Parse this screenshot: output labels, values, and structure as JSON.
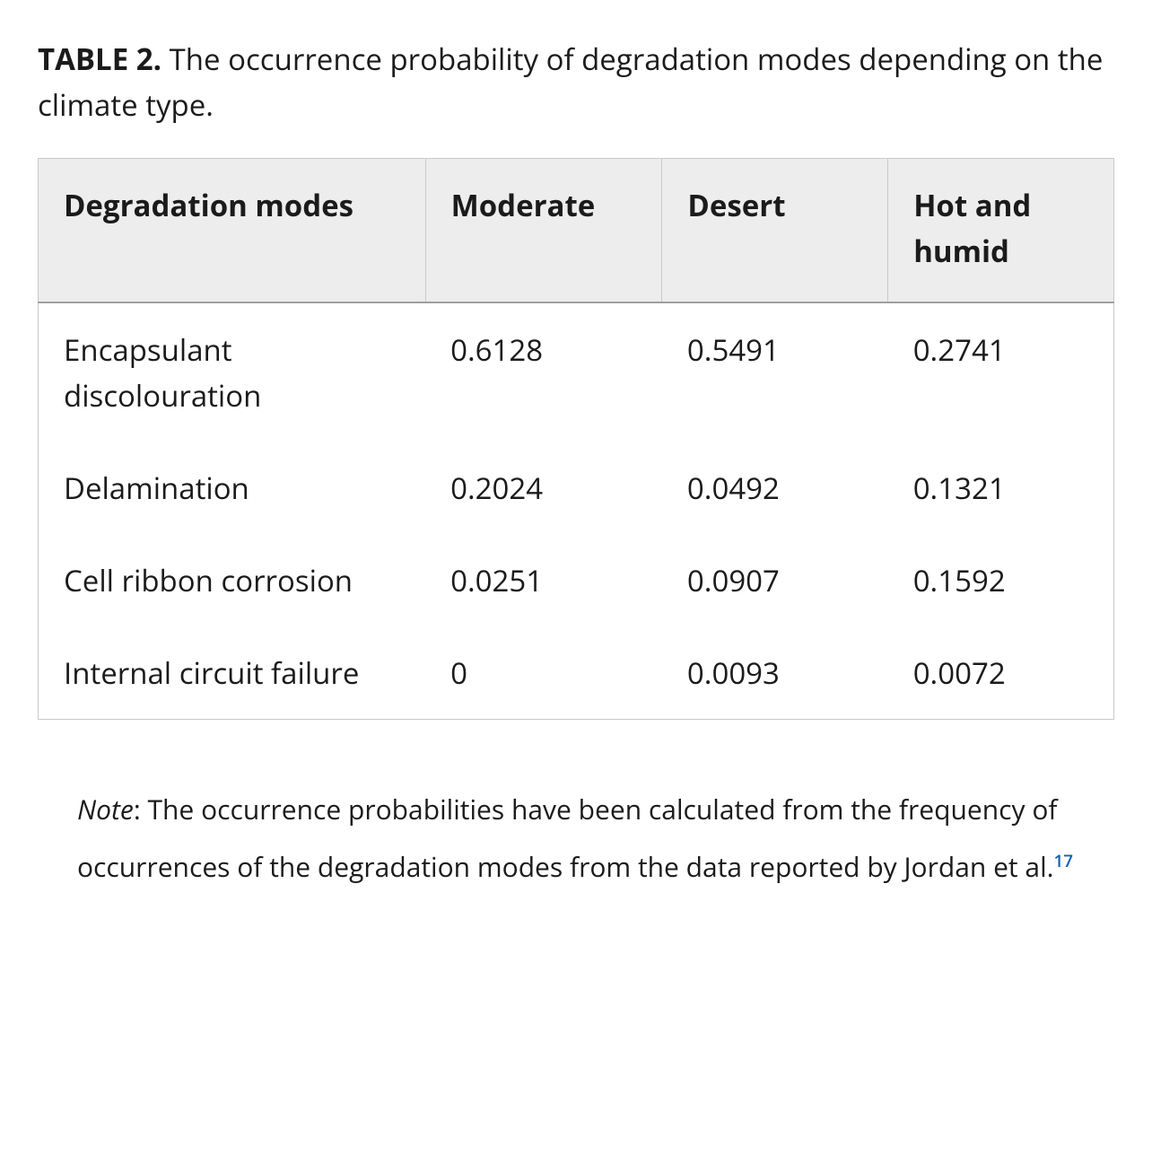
{
  "caption": {
    "label": "TABLE 2.",
    "text": "The occurrence probability of degradation modes depending on the climate type."
  },
  "table": {
    "type": "table",
    "background_color": "#ffffff",
    "header_background_color": "#ededed",
    "border_color": "#c9c9c9",
    "header_bottom_border_color": "#9f9f9f",
    "header_fontsize_pt": 25,
    "body_fontsize_pt": 25,
    "header_font_weight": 700,
    "body_font_weight": 400,
    "column_widths_pct": [
      36,
      22,
      21,
      21
    ],
    "columns": [
      "Degradation modes",
      "Moderate",
      "Desert",
      "Hot and humid"
    ],
    "rows": [
      [
        "Encapsulant discolouration",
        "0.6128",
        "0.5491",
        "0.2741"
      ],
      [
        "Delamination",
        "0.2024",
        "0.0492",
        "0.1321"
      ],
      [
        "Cell ribbon corrosion",
        "0.0251",
        "0.0907",
        "0.1592"
      ],
      [
        "Internal circuit failure",
        "0",
        "0.0093",
        "0.0072"
      ]
    ]
  },
  "footnote": {
    "note_label": "Note",
    "text_before_ref": ": The occurrence probabilities have been calculated from the frequency of occurrences of the degradation modes from the data reported by Jordan et al.",
    "ref_number": "17",
    "ref_color": "#105fae",
    "fontsize_pt": 22
  }
}
